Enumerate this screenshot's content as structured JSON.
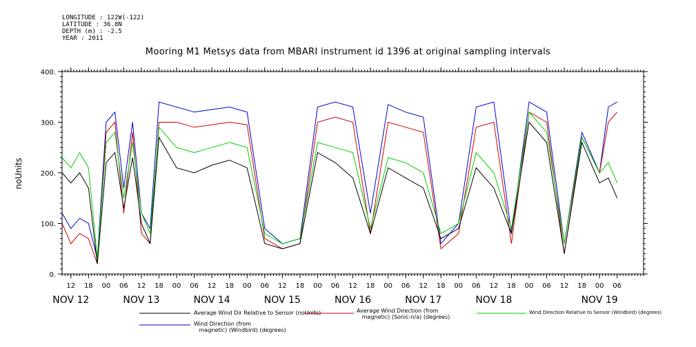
{
  "header": {
    "longitude": "LONGITUDE : 122W(-122)",
    "latitude": "LATITUDE : 36.8N",
    "depth": "DEPTH (m) : -2.5",
    "year": "YEAR : 2011"
  },
  "chart_data": {
    "type": "line",
    "title": "Mooring M1 Metsys data from MBARI instrument id 1396 at original sampling intervals",
    "ylabel": "noUnits",
    "xlabel": "",
    "ylim": [
      0,
      400
    ],
    "yticks": [
      "0.",
      "100.",
      "200.",
      "300.",
      "400."
    ],
    "xlim_hours": [
      -15,
      183
    ],
    "hour_ticks": [
      {
        "h": -12,
        "label": "12"
      },
      {
        "h": -6,
        "label": "18"
      },
      {
        "h": 0,
        "label": "00"
      },
      {
        "h": 6,
        "label": "06"
      },
      {
        "h": 12,
        "label": "12"
      },
      {
        "h": 18,
        "label": "18"
      },
      {
        "h": 24,
        "label": "00"
      },
      {
        "h": 30,
        "label": "06"
      },
      {
        "h": 36,
        "label": "12"
      },
      {
        "h": 42,
        "label": "18"
      },
      {
        "h": 48,
        "label": "00"
      },
      {
        "h": 54,
        "label": "06"
      },
      {
        "h": 60,
        "label": "12"
      },
      {
        "h": 66,
        "label": "18"
      },
      {
        "h": 72,
        "label": "00"
      },
      {
        "h": 78,
        "label": "06"
      },
      {
        "h": 84,
        "label": "12"
      },
      {
        "h": 90,
        "label": "18"
      },
      {
        "h": 96,
        "label": "00"
      },
      {
        "h": 102,
        "label": "06"
      },
      {
        "h": 108,
        "label": "12"
      },
      {
        "h": 114,
        "label": "18"
      },
      {
        "h": 120,
        "label": "00"
      },
      {
        "h": 126,
        "label": "06"
      },
      {
        "h": 132,
        "label": "12"
      },
      {
        "h": 138,
        "label": "18"
      },
      {
        "h": 144,
        "label": "00"
      },
      {
        "h": 150,
        "label": "06"
      },
      {
        "h": 156,
        "label": "12"
      },
      {
        "h": 162,
        "label": "18"
      },
      {
        "h": 168,
        "label": "00"
      },
      {
        "h": 174,
        "label": "06"
      }
    ],
    "date_labels": [
      {
        "h": -12,
        "label": "NOV 12"
      },
      {
        "h": 12,
        "label": "NOV 13"
      },
      {
        "h": 36,
        "label": "NOV 14"
      },
      {
        "h": 60,
        "label": "NOV 15"
      },
      {
        "h": 84,
        "label": "NOV 16"
      },
      {
        "h": 108,
        "label": "NOV 17"
      },
      {
        "h": 132,
        "label": "NOV 18"
      },
      {
        "h": 168,
        "label": "NOV 19"
      }
    ],
    "series": [
      {
        "name": "Wind Direction (from magnetic) (Windbird) (degrees)",
        "color": "#0000cc",
        "x": [
          -15,
          -12,
          -9,
          -6,
          -3,
          0,
          3,
          6,
          9,
          12,
          15,
          18,
          24,
          30,
          36,
          42,
          48,
          54,
          60,
          66,
          72,
          78,
          84,
          90,
          96,
          102,
          108,
          114,
          120,
          126,
          132,
          138,
          144,
          150,
          156,
          162,
          168,
          171,
          174
        ],
        "y": [
          120,
          90,
          110,
          100,
          30,
          300,
          320,
          170,
          300,
          120,
          90,
          340,
          330,
          320,
          325,
          330,
          320,
          90,
          60,
          70,
          330,
          340,
          330,
          120,
          335,
          320,
          310,
          60,
          100,
          330,
          340,
          80,
          340,
          320,
          60,
          280,
          200,
          330,
          340
        ]
      },
      {
        "name": "Average Wind Direction (from magnetic) (Sonic-n/a) (degrees)",
        "color": "#cc0000",
        "x": [
          -15,
          -12,
          -9,
          -6,
          -3,
          0,
          3,
          6,
          9,
          12,
          15,
          18,
          24,
          30,
          36,
          42,
          48,
          54,
          60,
          66,
          72,
          78,
          84,
          90,
          96,
          102,
          108,
          114,
          120,
          126,
          132,
          138,
          144,
          150,
          156,
          162,
          168,
          171,
          174
        ],
        "y": [
          100,
          60,
          80,
          70,
          20,
          280,
          300,
          120,
          280,
          80,
          60,
          300,
          300,
          290,
          295,
          300,
          295,
          70,
          50,
          60,
          300,
          310,
          300,
          80,
          300,
          290,
          280,
          50,
          80,
          290,
          300,
          60,
          320,
          300,
          40,
          270,
          200,
          300,
          320
        ]
      },
      {
        "name": "Wind Direction Relative to Sensor (Windbird) (degrees)",
        "color": "#00cc00",
        "x": [
          -15,
          -12,
          -9,
          -6,
          -3,
          0,
          3,
          6,
          9,
          12,
          15,
          18,
          24,
          30,
          36,
          42,
          48,
          54,
          60,
          66,
          72,
          78,
          84,
          90,
          96,
          102,
          108,
          114,
          120,
          126,
          132,
          138,
          144,
          150,
          156,
          162,
          168,
          171,
          174
        ],
        "y": [
          230,
          210,
          240,
          210,
          30,
          260,
          280,
          150,
          260,
          120,
          80,
          290,
          250,
          240,
          250,
          260,
          250,
          80,
          60,
          70,
          260,
          250,
          240,
          90,
          230,
          220,
          200,
          80,
          100,
          240,
          200,
          90,
          320,
          280,
          60,
          270,
          200,
          220,
          180
        ]
      },
      {
        "name": "Average Wind Dir Relative to Sensor (noUnits)",
        "color": "#000000",
        "x": [
          -15,
          -12,
          -9,
          -6,
          -3,
          0,
          3,
          6,
          9,
          12,
          15,
          18,
          24,
          30,
          36,
          42,
          48,
          54,
          60,
          66,
          72,
          78,
          84,
          90,
          96,
          102,
          108,
          114,
          120,
          126,
          132,
          138,
          144,
          150,
          156,
          162,
          168,
          171,
          174
        ],
        "y": [
          200,
          180,
          200,
          170,
          20,
          220,
          240,
          130,
          230,
          100,
          60,
          270,
          210,
          200,
          215,
          225,
          210,
          60,
          50,
          60,
          240,
          220,
          190,
          80,
          210,
          190,
          170,
          70,
          90,
          210,
          170,
          80,
          300,
          260,
          40,
          260,
          180,
          190,
          150
        ]
      }
    ],
    "legend": [
      {
        "text": "Average Wind Dir Relative to Sensor (noUnits)",
        "color": "#000000"
      },
      {
        "text": "Average Wind Direction (from\n   magnetic) (Sonic-n/a) (degrees)",
        "color": "#cc0000"
      },
      {
        "text": "Wind Direction Relative to Sensor (Windbird) (degrees)",
        "color": "#00cc00"
      },
      {
        "text": "Wind Direction (from\n   magnetic) (Windbird) (degrees)",
        "color": "#0000cc"
      }
    ]
  }
}
